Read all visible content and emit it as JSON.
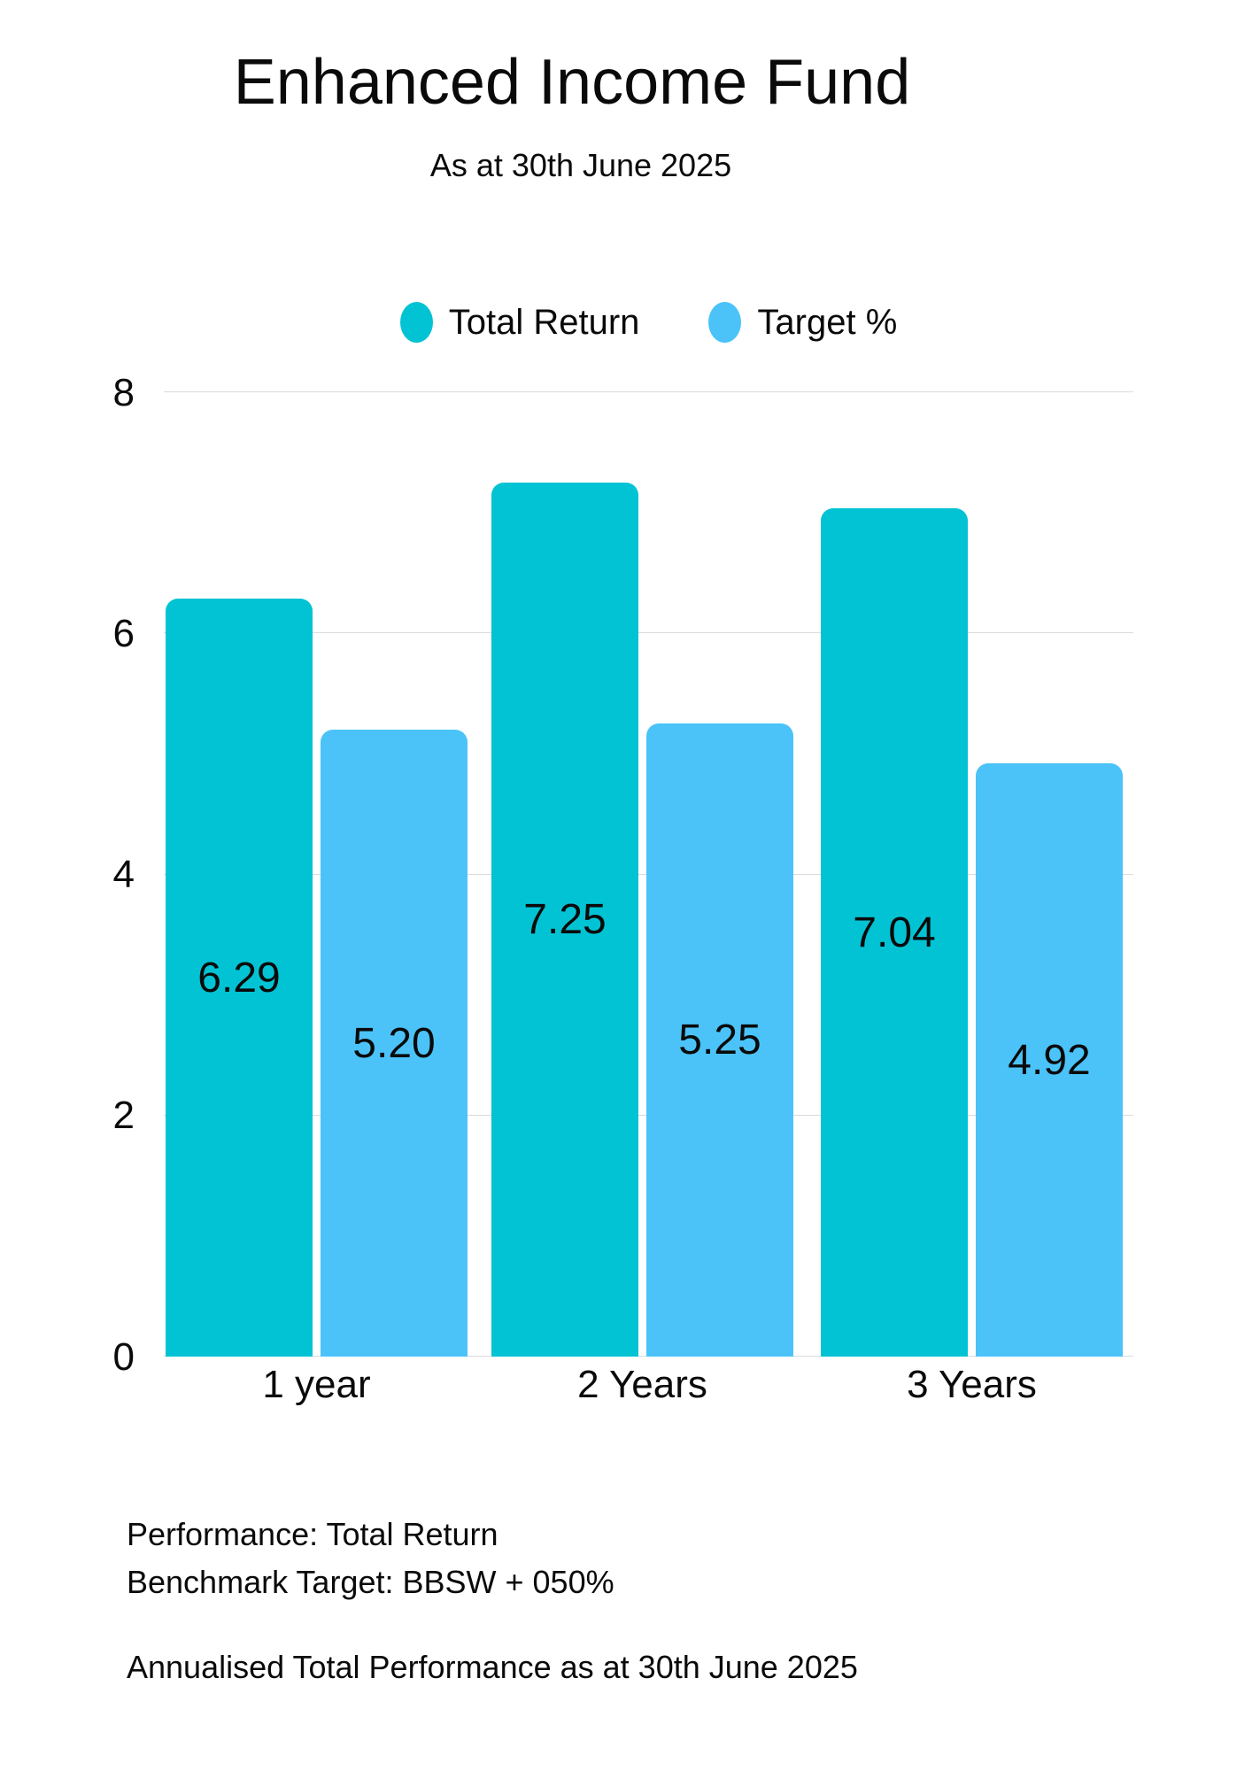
{
  "page": {
    "title": "Enhanced Income Fund",
    "subtitle": "As at 30th June 2025"
  },
  "legend": {
    "items": [
      {
        "label": "Total Return",
        "color": "#02C3D4"
      },
      {
        "label": "Target %",
        "color": "#4BC3F9"
      }
    ]
  },
  "chart_data": {
    "type": "bar",
    "title": "Enhanced Income Fund",
    "subtitle": "As at 30th June 2025",
    "categories": [
      "1 year",
      "2 Years",
      "3 Years"
    ],
    "series": [
      {
        "name": "Total Return",
        "color": "#02C3D4",
        "values": [
          6.29,
          7.25,
          7.04
        ],
        "labels": [
          "6.29",
          "7.25",
          "7.04"
        ]
      },
      {
        "name": "Target %",
        "color": "#4BC3F9",
        "values": [
          5.2,
          5.25,
          4.92
        ],
        "labels": [
          "5.20",
          "5.25",
          "4.92"
        ]
      }
    ],
    "ylim": [
      0,
      8
    ],
    "yticks": [
      0,
      2,
      4,
      6,
      8
    ],
    "grid": true,
    "legend_position": "top",
    "value_labels_position": "center-of-bar"
  },
  "footer": {
    "line1": "Performance: Total Return",
    "line2": "Benchmark Target: BBSW + 050%",
    "note": "Annualised Total Performance as at 30th June 2025"
  },
  "colors": {
    "background": "#ffffff",
    "grid": "#dbdbdb",
    "text": "#0a0a0a"
  }
}
